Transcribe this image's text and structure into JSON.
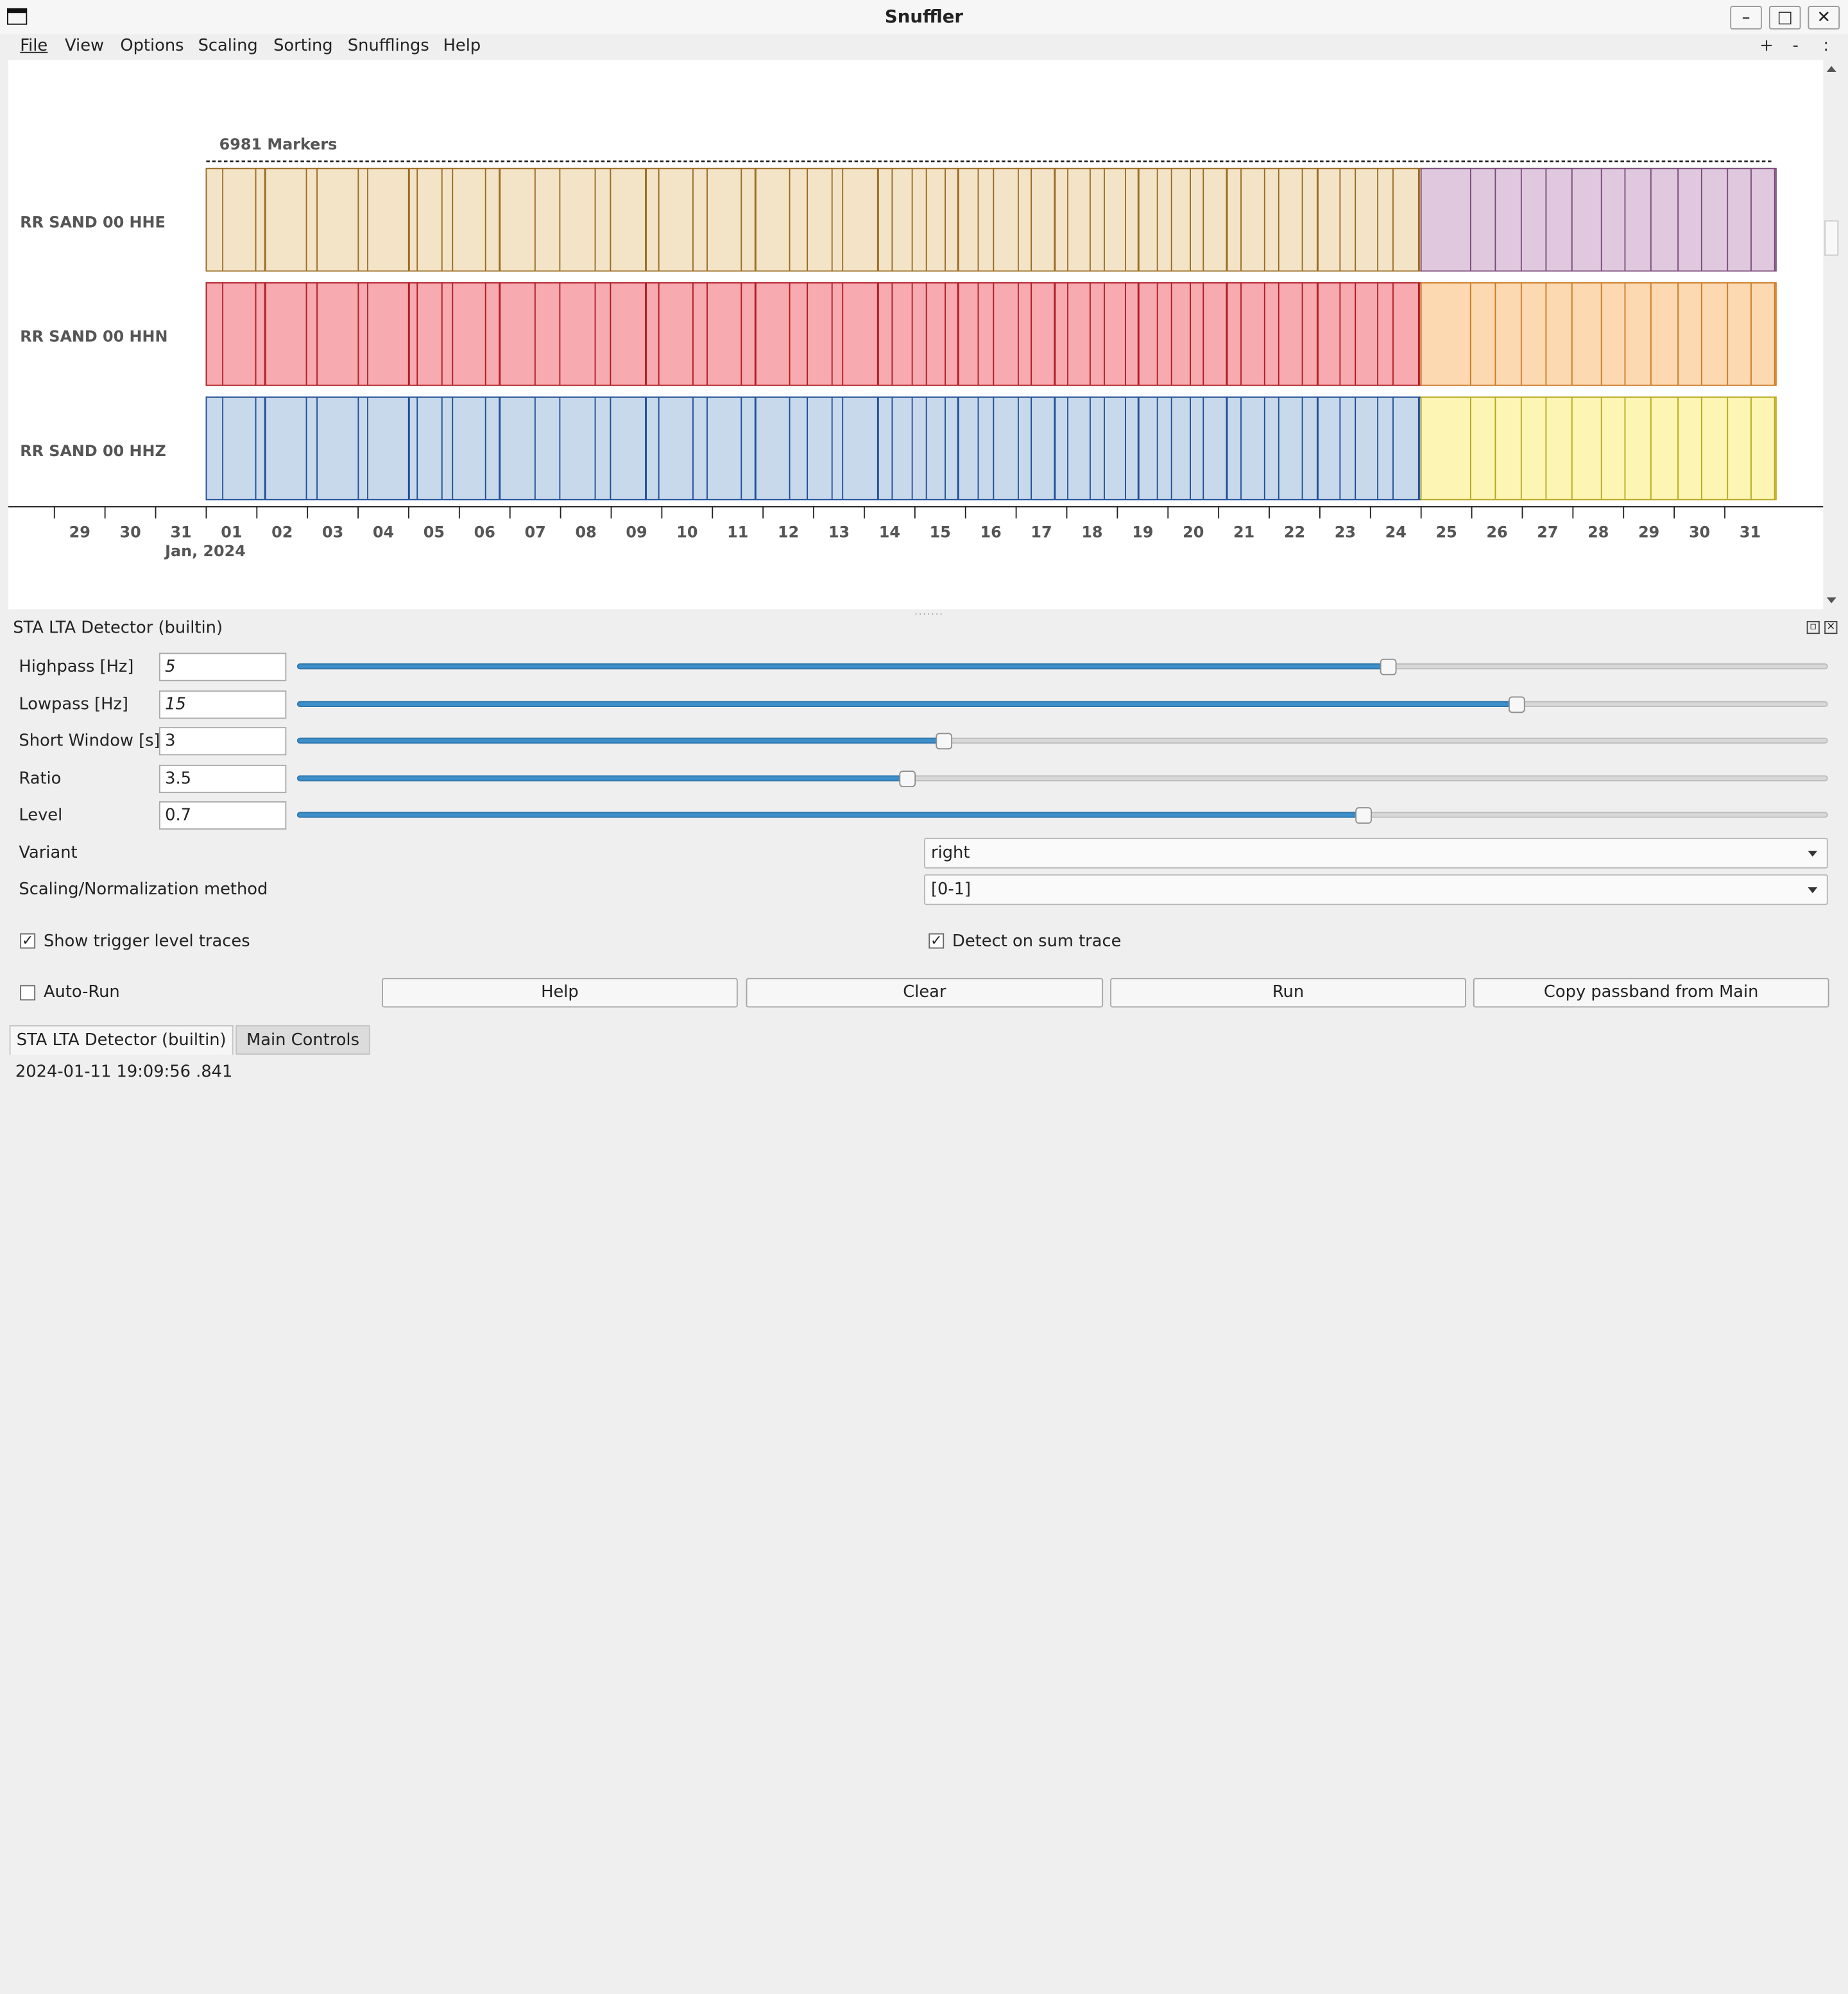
{
  "window": {
    "title": "Snuffler",
    "minimize": "–",
    "maximize": "□",
    "close": "✕"
  },
  "menubar": {
    "items": [
      "File",
      "View",
      "Options",
      "Scaling",
      "Sorting",
      "Snufflings",
      "Help"
    ],
    "zoom": [
      "+",
      "-",
      ":"
    ]
  },
  "plot": {
    "marker_count_label": "6981 Markers",
    "traces": [
      "RR SAND 00 HHE",
      "RR SAND 00 HHN",
      "RR SAND 00 HHZ"
    ],
    "day_ticks": [
      "29",
      "30",
      "31",
      "01",
      "02",
      "03",
      "04",
      "05",
      "06",
      "07",
      "08",
      "09",
      "10",
      "11",
      "12",
      "13",
      "14",
      "15",
      "16",
      "17",
      "18",
      "19",
      "20",
      "21",
      "22",
      "23",
      "24",
      "25",
      "26",
      "27",
      "28",
      "29",
      "30",
      "31"
    ],
    "month_label": "Jan, 2024",
    "colors": {
      "hhe_before": "#f3e4c8",
      "hhe_after": "#e0c9de",
      "hhn_before": "#f7aaaf",
      "hhn_after": "#fcd9b1",
      "hhz_before": "#c9d9ec",
      "hhz_after": "#fdf5b3"
    }
  },
  "panel": {
    "title": "STA LTA Detector (builtin)",
    "params": [
      {
        "label": "Highpass [Hz]",
        "value": "5",
        "slider_fraction": 0.713
      },
      {
        "label": "Lowpass [Hz]",
        "value": "15",
        "slider_fraction": 0.797
      },
      {
        "label": "Short Window [s]",
        "value": "3",
        "slider_fraction": 0.423
      },
      {
        "label": "Ratio",
        "value": "3.5",
        "slider_fraction": 0.399
      },
      {
        "label": "Level",
        "value": "0.7",
        "slider_fraction": 0.697
      }
    ],
    "variant": {
      "label": "Variant",
      "value": "right"
    },
    "scaling": {
      "label": "Scaling/Normalization method",
      "value": "[0-1]"
    },
    "show_trigger": {
      "label": "Show trigger level traces",
      "checked": true
    },
    "detect_sum": {
      "label": "Detect on sum trace",
      "checked": true
    },
    "autorun": {
      "label": "Auto-Run",
      "checked": false
    },
    "buttons": [
      "Help",
      "Clear",
      "Run",
      "Copy passband from Main"
    ],
    "accent_color": "#3d8ec9"
  },
  "tabs": [
    "STA LTA Detector (builtin)",
    "Main Controls"
  ],
  "status": "2024-01-11 19:09:56 .841"
}
